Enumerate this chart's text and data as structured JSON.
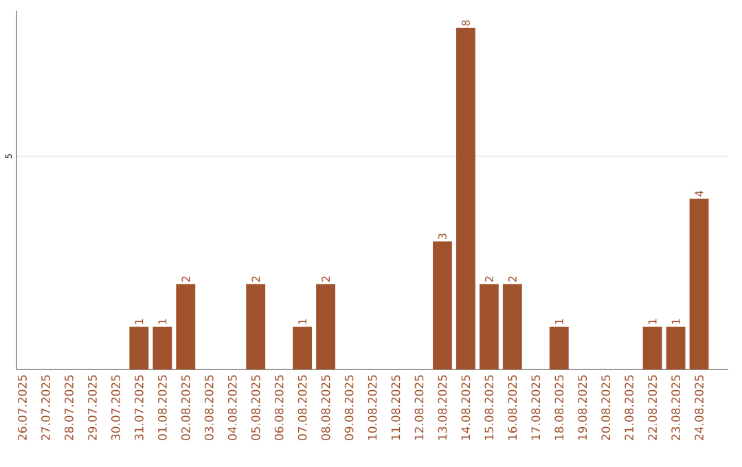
{
  "chart_data": {
    "type": "bar",
    "categories": [
      "26.07.2025",
      "27.07.2025",
      "28.07.2025",
      "29.07.2025",
      "30.07.2025",
      "31.07.2025",
      "01.08.2025",
      "02.08.2025",
      "03.08.2025",
      "04.08.2025",
      "05.08.2025",
      "06.08.2025",
      "07.08.2025",
      "08.08.2025",
      "09.08.2025",
      "10.08.2025",
      "11.08.2025",
      "12.08.2025",
      "13.08.2025",
      "14.08.2025",
      "15.08.2025",
      "16.08.2025",
      "17.08.2025",
      "18.08.2025",
      "19.08.2025",
      "20.08.2025",
      "21.08.2025",
      "22.08.2025",
      "23.08.2025",
      "24.08.2025"
    ],
    "values": [
      0,
      0,
      0,
      0,
      0,
      1,
      1,
      2,
      0,
      0,
      2,
      0,
      1,
      2,
      0,
      0,
      0,
      0,
      3,
      8,
      2,
      2,
      0,
      1,
      0,
      0,
      0,
      1,
      1,
      4
    ],
    "value_labels": [
      null,
      null,
      null,
      null,
      null,
      "1",
      "1",
      "2",
      null,
      null,
      "2",
      null,
      "1",
      "2",
      null,
      null,
      null,
      null,
      "3",
      "8",
      "2",
      "2",
      null,
      "1",
      null,
      null,
      null,
      "1",
      "1",
      "4"
    ],
    "color": "#a0522d",
    "ylim": [
      0,
      8.4
    ],
    "yticks": [
      5
    ],
    "grid": "y"
  }
}
